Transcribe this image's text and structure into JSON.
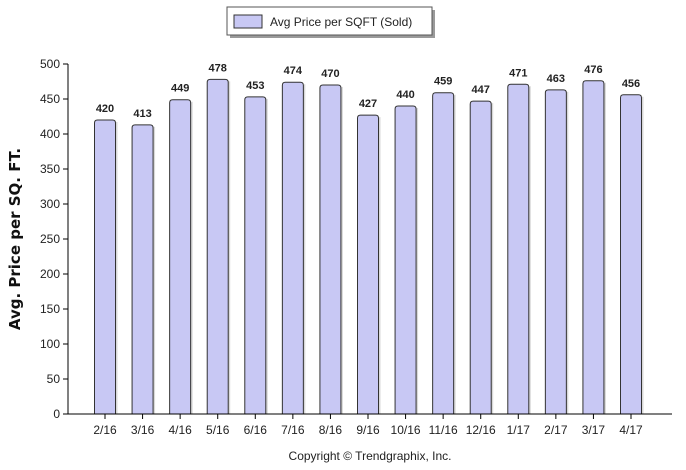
{
  "legend": {
    "label": "Avg Price per SQFT (Sold)"
  },
  "footer": {
    "text": "Copyright © Trendgraphix, Inc."
  },
  "colors": {
    "bar_fill": "#c8c8f4",
    "bar_stroke": "#333333",
    "grid": "#000000"
  },
  "chart_data": {
    "type": "bar",
    "title": "",
    "xlabel": "",
    "ylabel": "Avg. Price per SQ. FT.",
    "categories": [
      "2/16",
      "3/16",
      "4/16",
      "5/16",
      "6/16",
      "7/16",
      "8/16",
      "9/16",
      "10/16",
      "11/16",
      "12/16",
      "1/17",
      "2/17",
      "3/17",
      "4/17"
    ],
    "series": [
      {
        "name": "Avg Price per SQFT (Sold)",
        "values": [
          420,
          413,
          449,
          478,
          453,
          474,
          470,
          427,
          440,
          459,
          447,
          471,
          463,
          476,
          456
        ]
      }
    ],
    "ylim": [
      0,
      500
    ],
    "yticks": [
      0,
      50,
      100,
      150,
      200,
      250,
      300,
      350,
      400,
      450,
      500
    ],
    "grid": false,
    "legend_position": "top-center",
    "data_labels": true
  }
}
